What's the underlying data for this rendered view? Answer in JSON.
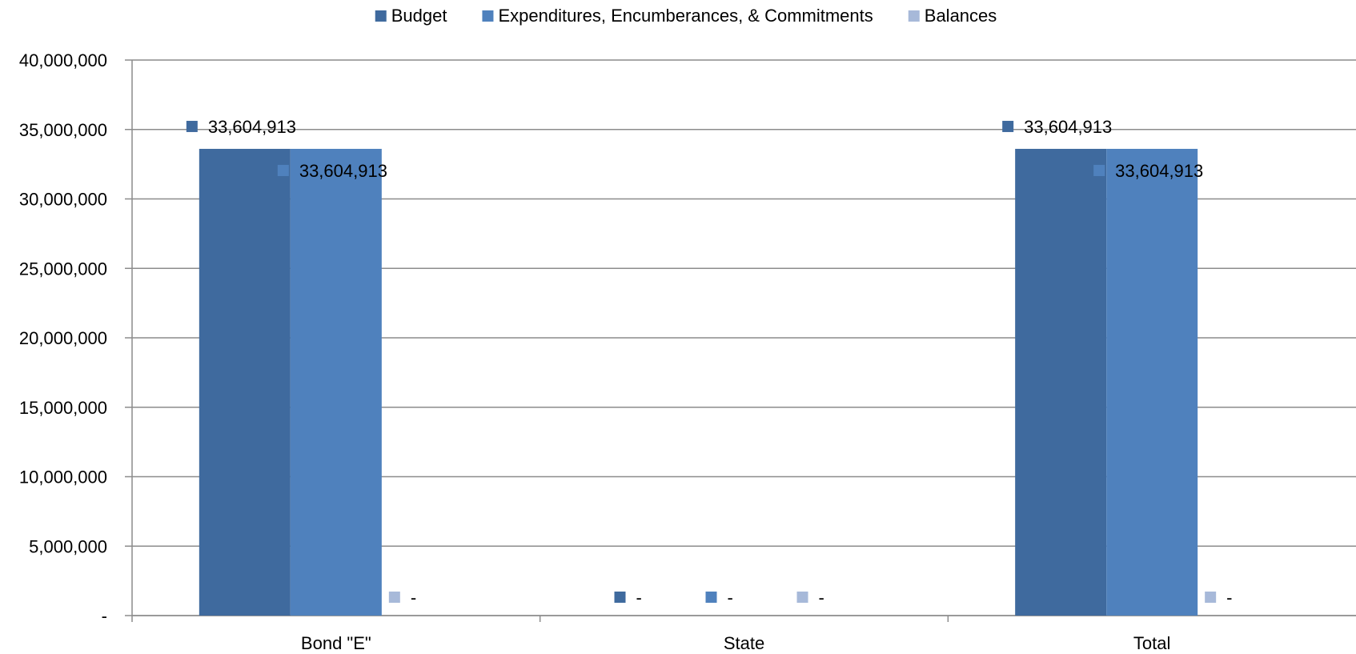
{
  "chart_data": {
    "type": "bar",
    "categories": [
      "Bond \"E\"",
      "State",
      "Total"
    ],
    "series": [
      {
        "name": "Budget",
        "color": "#3F6A9E",
        "values": [
          33604913,
          0,
          33604913
        ],
        "labels": [
          "33,604,913",
          "-",
          "33,604,913"
        ]
      },
      {
        "name": "Expenditures, Encumberances, & Commitments",
        "color": "#4F81BD",
        "values": [
          33604913,
          0,
          33604913
        ],
        "labels": [
          "33,604,913",
          "-",
          "33,604,913"
        ]
      },
      {
        "name": "Balances",
        "color": "#A7B9D9",
        "values": [
          0,
          0,
          0
        ],
        "labels": [
          "-",
          "-",
          "-"
        ]
      }
    ],
    "ylim": [
      0,
      40000000
    ],
    "yticks": [
      0,
      5000000,
      10000000,
      15000000,
      20000000,
      25000000,
      30000000,
      35000000,
      40000000
    ],
    "ytick_labels": [
      "-",
      "5,000,000",
      "10,000,000",
      "15,000,000",
      "20,000,000",
      "25,000,000",
      "30,000,000",
      "35,000,000",
      "40,000,000"
    ],
    "grid": true,
    "legend_position": "top-center"
  }
}
